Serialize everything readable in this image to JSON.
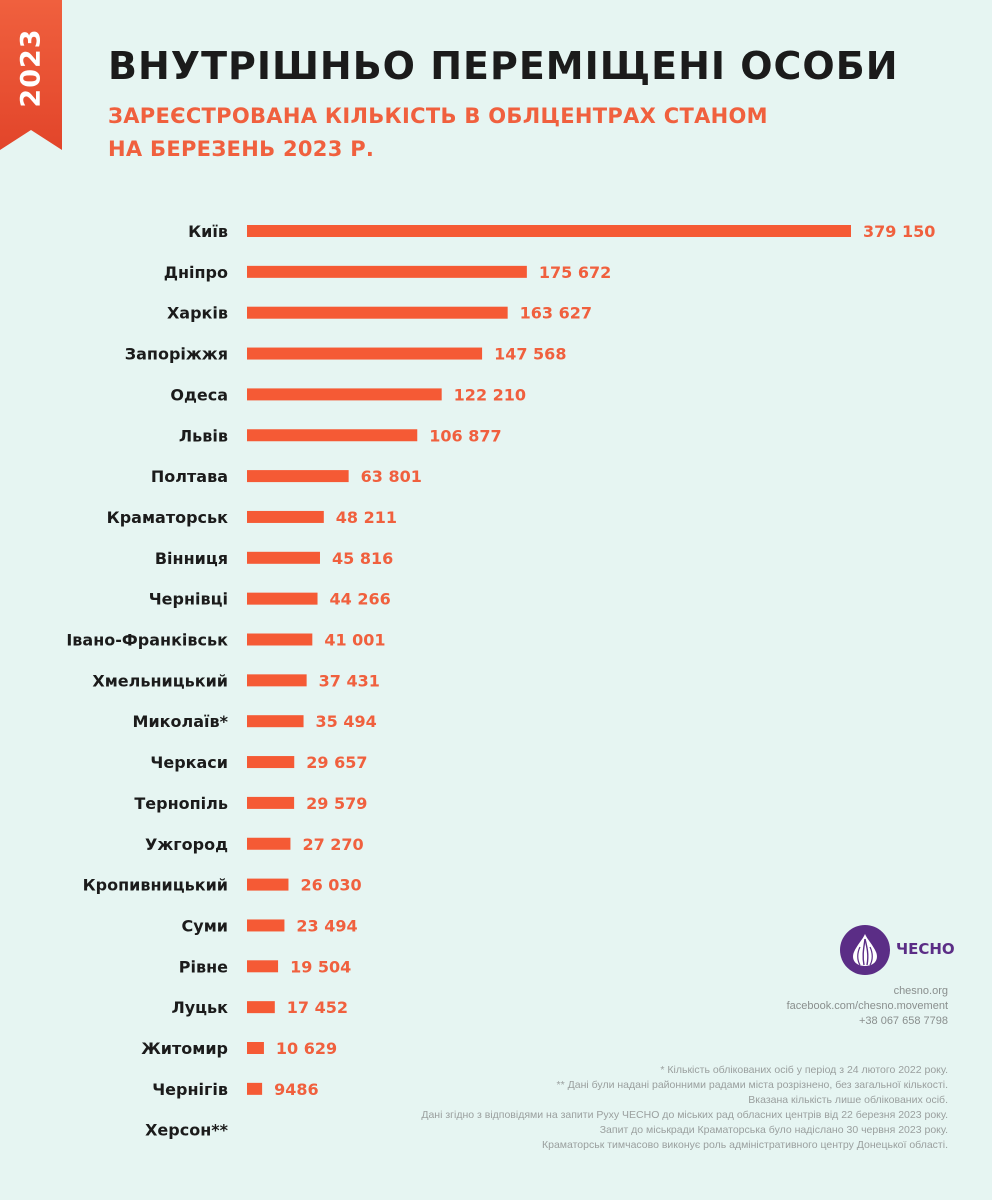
{
  "year": "2023",
  "title": "ВНУТРІШНЬО ПЕРЕМІЩЕНІ ОСОБИ",
  "subtitle": "ЗАРЕЄСТРОВАНА КІЛЬКІСТЬ В ОБЛЦЕНТРАХ СТАНОМ НА БЕРЕЗЕНЬ 2023 Р.",
  "colors": {
    "accent": "#f55a35",
    "label": "#f0603e",
    "background": "#e6f5f2",
    "brand": "#5b2d86"
  },
  "chart_data": {
    "type": "bar",
    "orientation": "horizontal",
    "title": "ВНУТРІШНЬО ПЕРЕМІЩЕНІ ОСОБИ",
    "subtitle": "ЗАРЕЄСТРОВАНА КІЛЬКІСТЬ В ОБЛЦЕНТРАХ СТАНОМ НА БЕРЕЗЕНЬ 2023 Р.",
    "categories": [
      "Київ",
      "Дніпро",
      "Харків",
      "Запоріжжя",
      "Одеса",
      "Львів",
      "Полтава",
      "Краматорськ",
      "Вінниця",
      "Чернівці",
      "Івано-Франківськ",
      "Хмельницький",
      "Миколаїв*",
      "Черкаси",
      "Тернопіль",
      "Ужгород",
      "Кропивницький",
      "Суми",
      "Рівне",
      "Луцьк",
      "Житомир",
      "Чернігів",
      "Херсон**"
    ],
    "values": [
      379150,
      175672,
      163627,
      147568,
      122210,
      106877,
      63801,
      48211,
      45816,
      44266,
      41001,
      37431,
      35494,
      29657,
      29579,
      27270,
      26030,
      23494,
      19504,
      17452,
      10629,
      9486,
      null
    ],
    "value_labels": [
      "379 150",
      "175 672",
      "163 627",
      "147 568",
      "122 210",
      "106 877",
      "63 801",
      "48 211",
      "45 816",
      "44 266",
      "41 001",
      "37 431",
      "35 494",
      "29 657",
      "29 579",
      "27 270",
      "26 030",
      "23 494",
      "19 504",
      "17 452",
      "10 629",
      "9486",
      ""
    ],
    "xlabel": "",
    "ylabel": "",
    "grid": false,
    "legend": "none"
  },
  "logo": {
    "text": "ЧЕСНО",
    "icon": "garlic-icon"
  },
  "contacts": [
    "chesno.org",
    "facebook.com/chesno.movement",
    "+38 067 658 7798"
  ],
  "notes": [
    "*  Кількість облікованих осіб у період з 24 лютого 2022 року.",
    "**  Дані були надані районними радами міста розрізнено, без загальної кількості.",
    "Вказана кількість лише облікованих осіб.",
    "Дані згідно з відповідями на запити Руху ЧЕСНО до міських рад обласних центрів від 22 березня 2023 року.",
    "Запит до міськради Краматорська було надіслано 30 червня 2023 року.",
    "Краматорськ тимчасово виконує роль адміністративного центру Донецької області."
  ]
}
